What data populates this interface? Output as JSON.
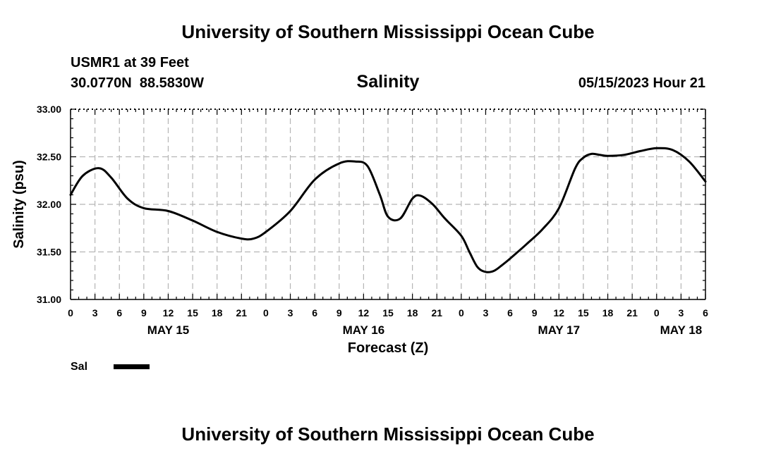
{
  "header": {
    "title": "University of Southern Mississippi Ocean Cube",
    "station_line": "USMR1 at 39 Feet",
    "coords_line": "30.0770N  88.5830W",
    "datetime": "05/15/2023 Hour 21"
  },
  "footer": {
    "title": "University of Southern Mississippi Ocean Cube"
  },
  "legend": {
    "label": "Sal",
    "color": "#000000"
  },
  "chart_data": {
    "type": "line",
    "title": "Salinity",
    "xlabel": "Forecast (Z)",
    "ylabel": "Salinity (psu)",
    "xlim": [
      0,
      78
    ],
    "ylim": [
      31.0,
      33.0
    ],
    "x_unit": "hours since May 15 00Z",
    "yticks": [
      "31.00",
      "31.50",
      "32.00",
      "32.50",
      "33.00"
    ],
    "ytick_values": [
      31.0,
      31.5,
      32.0,
      32.5,
      33.0
    ],
    "xtick_values": [
      0,
      3,
      6,
      9,
      12,
      15,
      18,
      21,
      24,
      27,
      30,
      33,
      36,
      39,
      42,
      45,
      48,
      51,
      54,
      57,
      60,
      63,
      66,
      69,
      72,
      75,
      78
    ],
    "xtick_labels": [
      "0",
      "3",
      "6",
      "9",
      "12",
      "15",
      "18",
      "21",
      "0",
      "3",
      "6",
      "9",
      "12",
      "15",
      "18",
      "21",
      "0",
      "3",
      "6",
      "9",
      "12",
      "15",
      "18",
      "21",
      "0",
      "3",
      "6"
    ],
    "date_labels": [
      {
        "label": "MAY 15",
        "x": 12
      },
      {
        "label": "MAY 16",
        "x": 36
      },
      {
        "label": "MAY 17",
        "x": 60
      },
      {
        "label": "MAY 18",
        "x": 75
      }
    ],
    "grid": true,
    "series": [
      {
        "name": "Sal",
        "x": [
          0,
          1.5,
          3.5,
          5,
          7,
          9,
          12,
          15,
          18,
          21,
          22.5,
          24,
          27,
          30,
          33,
          35,
          36.5,
          38,
          39,
          40.5,
          42,
          43,
          44.5,
          46,
          48,
          49,
          50,
          51,
          52,
          53,
          54,
          56,
          58,
          60,
          62,
          63,
          64,
          65,
          66,
          68,
          70,
          72,
          74,
          76,
          78
        ],
        "y": [
          32.1,
          32.3,
          32.38,
          32.28,
          32.06,
          31.96,
          31.93,
          31.83,
          31.71,
          31.64,
          31.64,
          31.71,
          31.93,
          32.26,
          32.43,
          32.45,
          32.4,
          32.1,
          31.87,
          31.85,
          32.06,
          32.09,
          32.0,
          31.85,
          31.67,
          31.5,
          31.34,
          31.29,
          31.3,
          31.36,
          31.43,
          31.58,
          31.74,
          31.96,
          32.38,
          32.49,
          32.53,
          32.52,
          32.51,
          32.52,
          32.56,
          32.59,
          32.57,
          32.45,
          32.24
        ]
      }
    ]
  }
}
